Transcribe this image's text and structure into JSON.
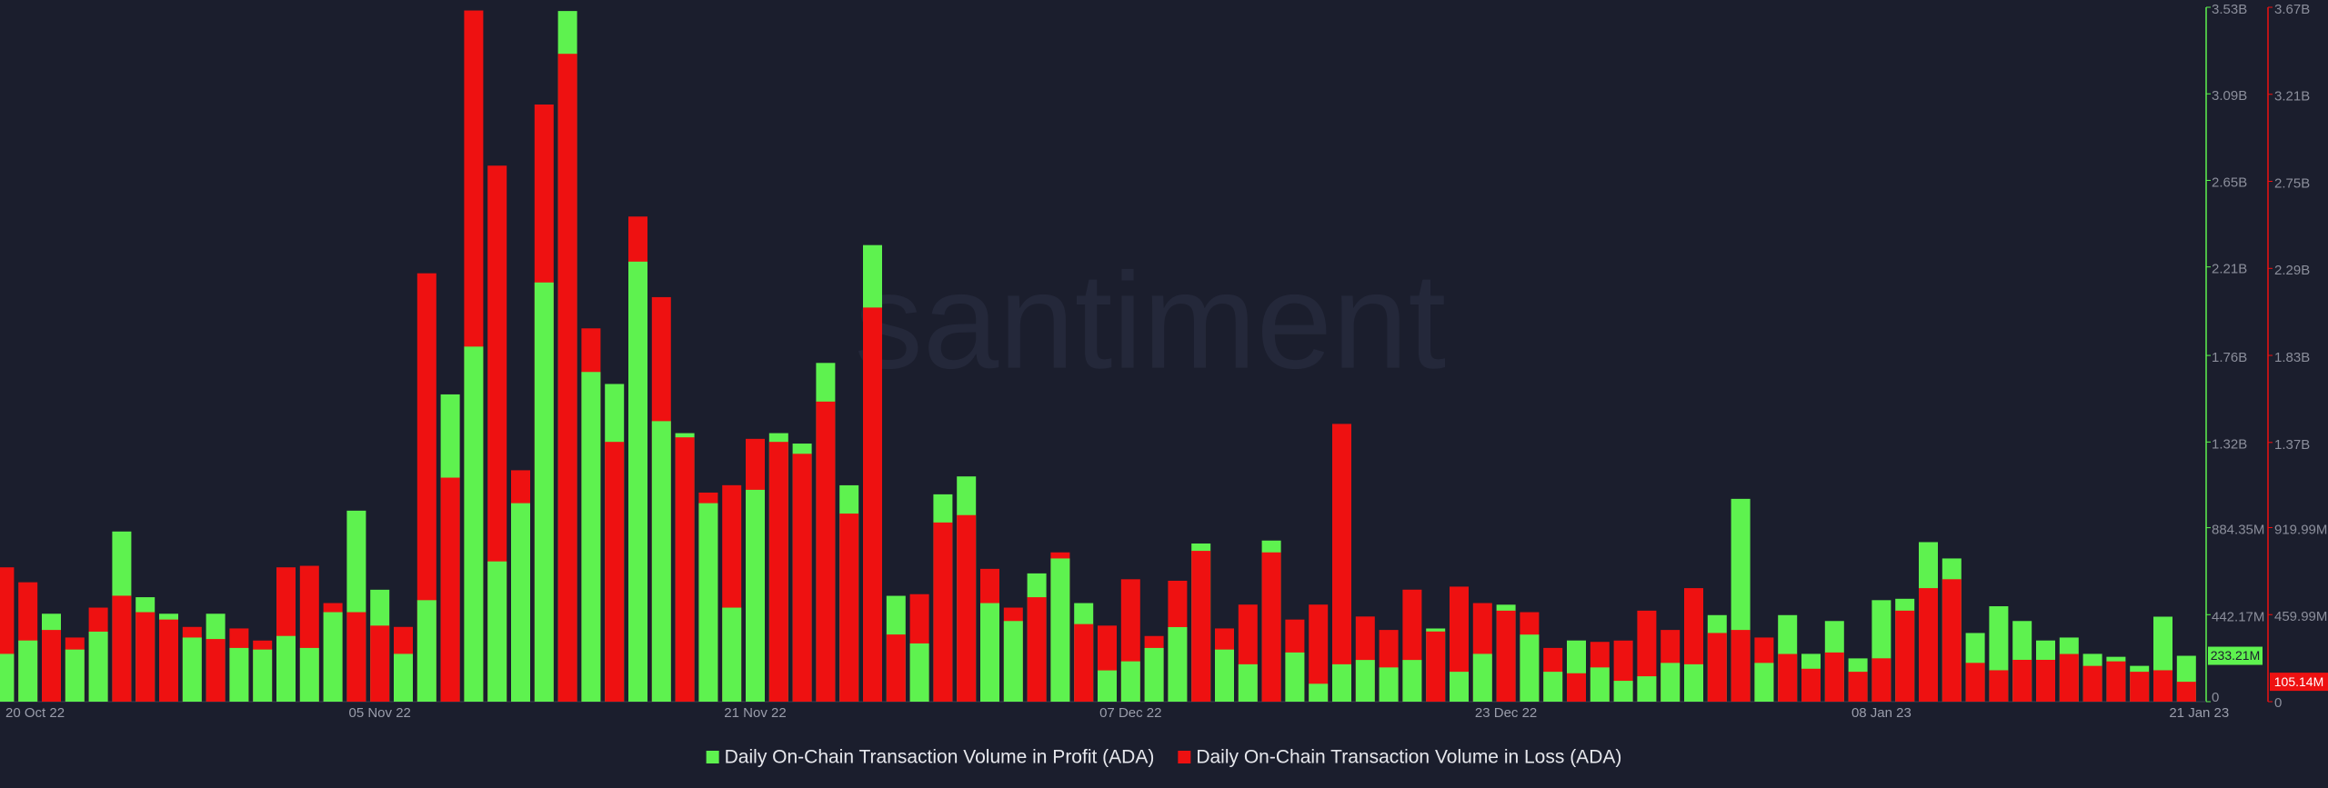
{
  "chart_data": {
    "type": "bar",
    "watermark": "santiment",
    "categories": [
      "20 Oct 22",
      null,
      null,
      null,
      null,
      null,
      null,
      null,
      null,
      null,
      null,
      null,
      null,
      null,
      null,
      null,
      "05 Nov 22",
      null,
      null,
      null,
      null,
      null,
      null,
      null,
      null,
      null,
      null,
      null,
      null,
      null,
      null,
      null,
      "21 Nov 22",
      null,
      null,
      null,
      null,
      null,
      null,
      null,
      null,
      null,
      null,
      null,
      null,
      null,
      null,
      null,
      "07 Dec 22",
      null,
      null,
      null,
      null,
      null,
      null,
      null,
      null,
      null,
      null,
      null,
      null,
      null,
      null,
      null,
      "23 Dec 22",
      null,
      null,
      null,
      null,
      null,
      null,
      null,
      null,
      null,
      null,
      null,
      null,
      null,
      null,
      null,
      "08 Jan 23",
      null,
      null,
      null,
      null,
      null,
      null,
      null,
      null,
      null,
      null,
      null,
      null,
      "21 Jan 23"
    ],
    "series": [
      {
        "name": "Daily On-Chain Transaction Volume in Profit (ADA)",
        "color": "#5ef24f",
        "axis": "y",
        "last_label": "233.21M",
        "values": [
          243000000,
          311000000,
          447000000,
          265000000,
          356000000,
          865000000,
          531000000,
          447000000,
          326000000,
          447000000,
          273000000,
          265000000,
          334000000,
          273000000,
          455000000,
          971000000,
          569000000,
          243000000,
          516000000,
          1562000000,
          1805000000,
          713000000,
          1009000000,
          2131000000,
          3511000000,
          1676000000,
          1615000000,
          2237000000,
          1426000000,
          1365000000,
          1009000000,
          478000000,
          1077000000,
          1365000000,
          1312000000,
          1722000000,
          1100000000,
          2321000000,
          538000000,
          296000000,
          1054000000,
          1145000000,
          501000000,
          410000000,
          652000000,
          728000000,
          501000000,
          159000000,
          205000000,
          273000000,
          379000000,
          804000000,
          265000000,
          190000000,
          819000000,
          250000000,
          91000000,
          190000000,
          212000000,
          174000000,
          212000000,
          372000000,
          152000000,
          243000000,
          493000000,
          341000000,
          152000000,
          311000000,
          174000000,
          106000000,
          129000000,
          197000000,
          190000000,
          440000000,
          1031000000,
          197000000,
          440000000,
          243000000,
          410000000,
          220000000,
          516000000,
          523000000,
          811000000,
          728000000,
          349000000,
          485000000,
          410000000,
          311000000,
          326000000,
          243000000,
          228000000,
          182000000,
          432000000,
          233210000
        ]
      },
      {
        "name": "Daily On-Chain Transaction Volume in Loss (ADA)",
        "color": "#ee1111",
        "axis": "y2",
        "last_label": "105.14M",
        "values": [
          710000000,
          631000000,
          379000000,
          339000000,
          497000000,
          560000000,
          473000000,
          434000000,
          395000000,
          331000000,
          387000000,
          323000000,
          710000000,
          718000000,
          521000000,
          473000000,
          402000000,
          395000000,
          2264000000,
          1184000000,
          3653000000,
          2833000000,
          1223000000,
          3156000000,
          3424000000,
          1973000000,
          1373000000,
          2564000000,
          2138000000,
          1397000000,
          1105000000,
          1144000000,
          1389000000,
          1373000000,
          1310000000,
          1586000000,
          994000000,
          2083000000,
          355000000,
          568000000,
          947000000,
          986000000,
          702000000,
          497000000,
          552000000,
          789000000,
          410000000,
          402000000,
          647000000,
          347000000,
          639000000,
          797000000,
          387000000,
          513000000,
          789000000,
          434000000,
          513000000,
          1468000000,
          450000000,
          379000000,
          592000000,
          371000000,
          608000000,
          521000000,
          481000000,
          473000000,
          284000000,
          150000000,
          316000000,
          323000000,
          481000000,
          379000000,
          600000000,
          363000000,
          379000000,
          339000000,
          252000000,
          174000000,
          260000000,
          158000000,
          229000000,
          481000000,
          600000000,
          647000000,
          205000000,
          166000000,
          221000000,
          221000000,
          252000000,
          189000000,
          213000000,
          158000000,
          166000000,
          105140000
        ]
      }
    ],
    "ylim": [
      0,
      3530000000
    ],
    "yticks": [
      0,
      {
        "value": 442170000,
        "label": "442.17M"
      },
      {
        "value": 884350000,
        "label": "884.35M"
      },
      {
        "value": 1320000000,
        "label": "1.32B"
      },
      {
        "value": 1760000000,
        "label": "1.76B"
      },
      {
        "value": 2210000000,
        "label": "2.21B"
      },
      {
        "value": 2650000000,
        "label": "2.65B"
      },
      {
        "value": 3090000000,
        "label": "3.09B"
      },
      {
        "value": 3530000000,
        "label": "3.53B"
      }
    ],
    "y2lim": [
      0,
      3670000000
    ],
    "y2ticks": [
      0,
      {
        "value": 459990000,
        "label": "459.99M"
      },
      {
        "value": 919990000,
        "label": "919.99M"
      },
      {
        "value": 1370000000,
        "label": "1.37B"
      },
      {
        "value": 1830000000,
        "label": "1.83B"
      },
      {
        "value": 2290000000,
        "label": "2.29B"
      },
      {
        "value": 2750000000,
        "label": "2.75B"
      },
      {
        "value": 3210000000,
        "label": "3.21B"
      },
      {
        "value": 3670000000,
        "label": "3.67B"
      }
    ],
    "legend": "bottom"
  }
}
